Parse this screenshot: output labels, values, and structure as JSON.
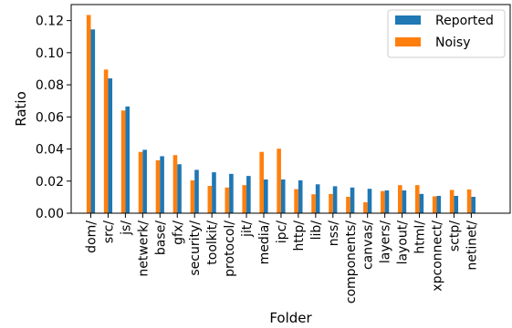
{
  "chart_data": {
    "type": "bar",
    "xlabel": "Folder",
    "ylabel": "Ratio",
    "ylim": [
      0,
      0.13
    ],
    "yticks": [
      "0.00",
      "0.02",
      "0.04",
      "0.06",
      "0.08",
      "0.10",
      "0.12"
    ],
    "yticks_values": [
      0,
      0.02,
      0.04,
      0.06,
      0.08,
      0.1,
      0.12
    ],
    "grid": false,
    "legend_position": "top-right",
    "categories": [
      "dom/",
      "src/",
      "js/",
      "netwerk/",
      "base/",
      "gfx/",
      "security/",
      "toolkit/",
      "protocol/",
      "jit/",
      "media/",
      "ipc/",
      "http/",
      "lib/",
      "nss/",
      "components/",
      "canvas/",
      "layers/",
      "layout/",
      "html/",
      "xpconnect/",
      "sctp/",
      "netinet/"
    ],
    "series": [
      {
        "name": "Reported",
        "color": "#1f77b4",
        "values": [
          0.1145,
          0.084,
          0.0665,
          0.0395,
          0.0355,
          0.0305,
          0.027,
          0.0255,
          0.0245,
          0.0232,
          0.021,
          0.021,
          0.0205,
          0.018,
          0.0168,
          0.016,
          0.0152,
          0.0142,
          0.0142,
          0.012,
          0.0108,
          0.0108,
          0.0102
        ]
      },
      {
        "name": "Noisy",
        "color": "#ff7f0e",
        "values": [
          0.1235,
          0.0895,
          0.064,
          0.0382,
          0.033,
          0.0362,
          0.0205,
          0.017,
          0.016,
          0.0175,
          0.0382,
          0.0402,
          0.015,
          0.0118,
          0.012,
          0.0102,
          0.0068,
          0.0138,
          0.0175,
          0.0175,
          0.0105,
          0.0145,
          0.0148
        ]
      }
    ]
  }
}
